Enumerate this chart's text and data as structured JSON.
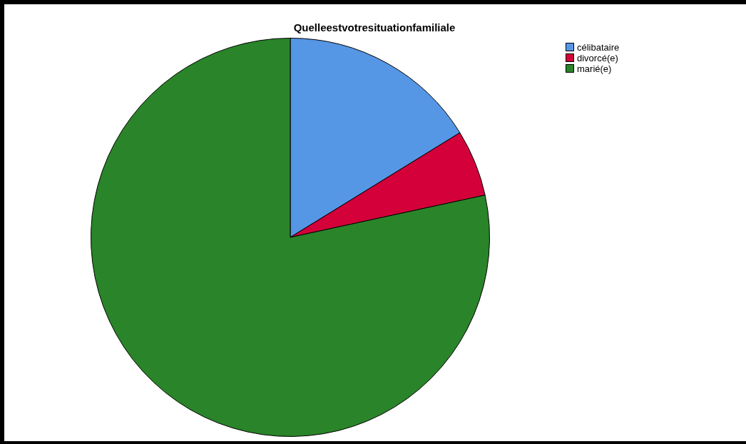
{
  "chart_data": {
    "type": "pie",
    "title": "Quelleestvotresituationfamiliale",
    "categories": [
      "célibataire",
      "divorcé(e)",
      "marié(e)"
    ],
    "values": [
      16.2,
      5.4,
      78.4
    ],
    "colors": [
      "#5596e5",
      "#d3003a",
      "#2a8429"
    ],
    "legend": "top right"
  }
}
